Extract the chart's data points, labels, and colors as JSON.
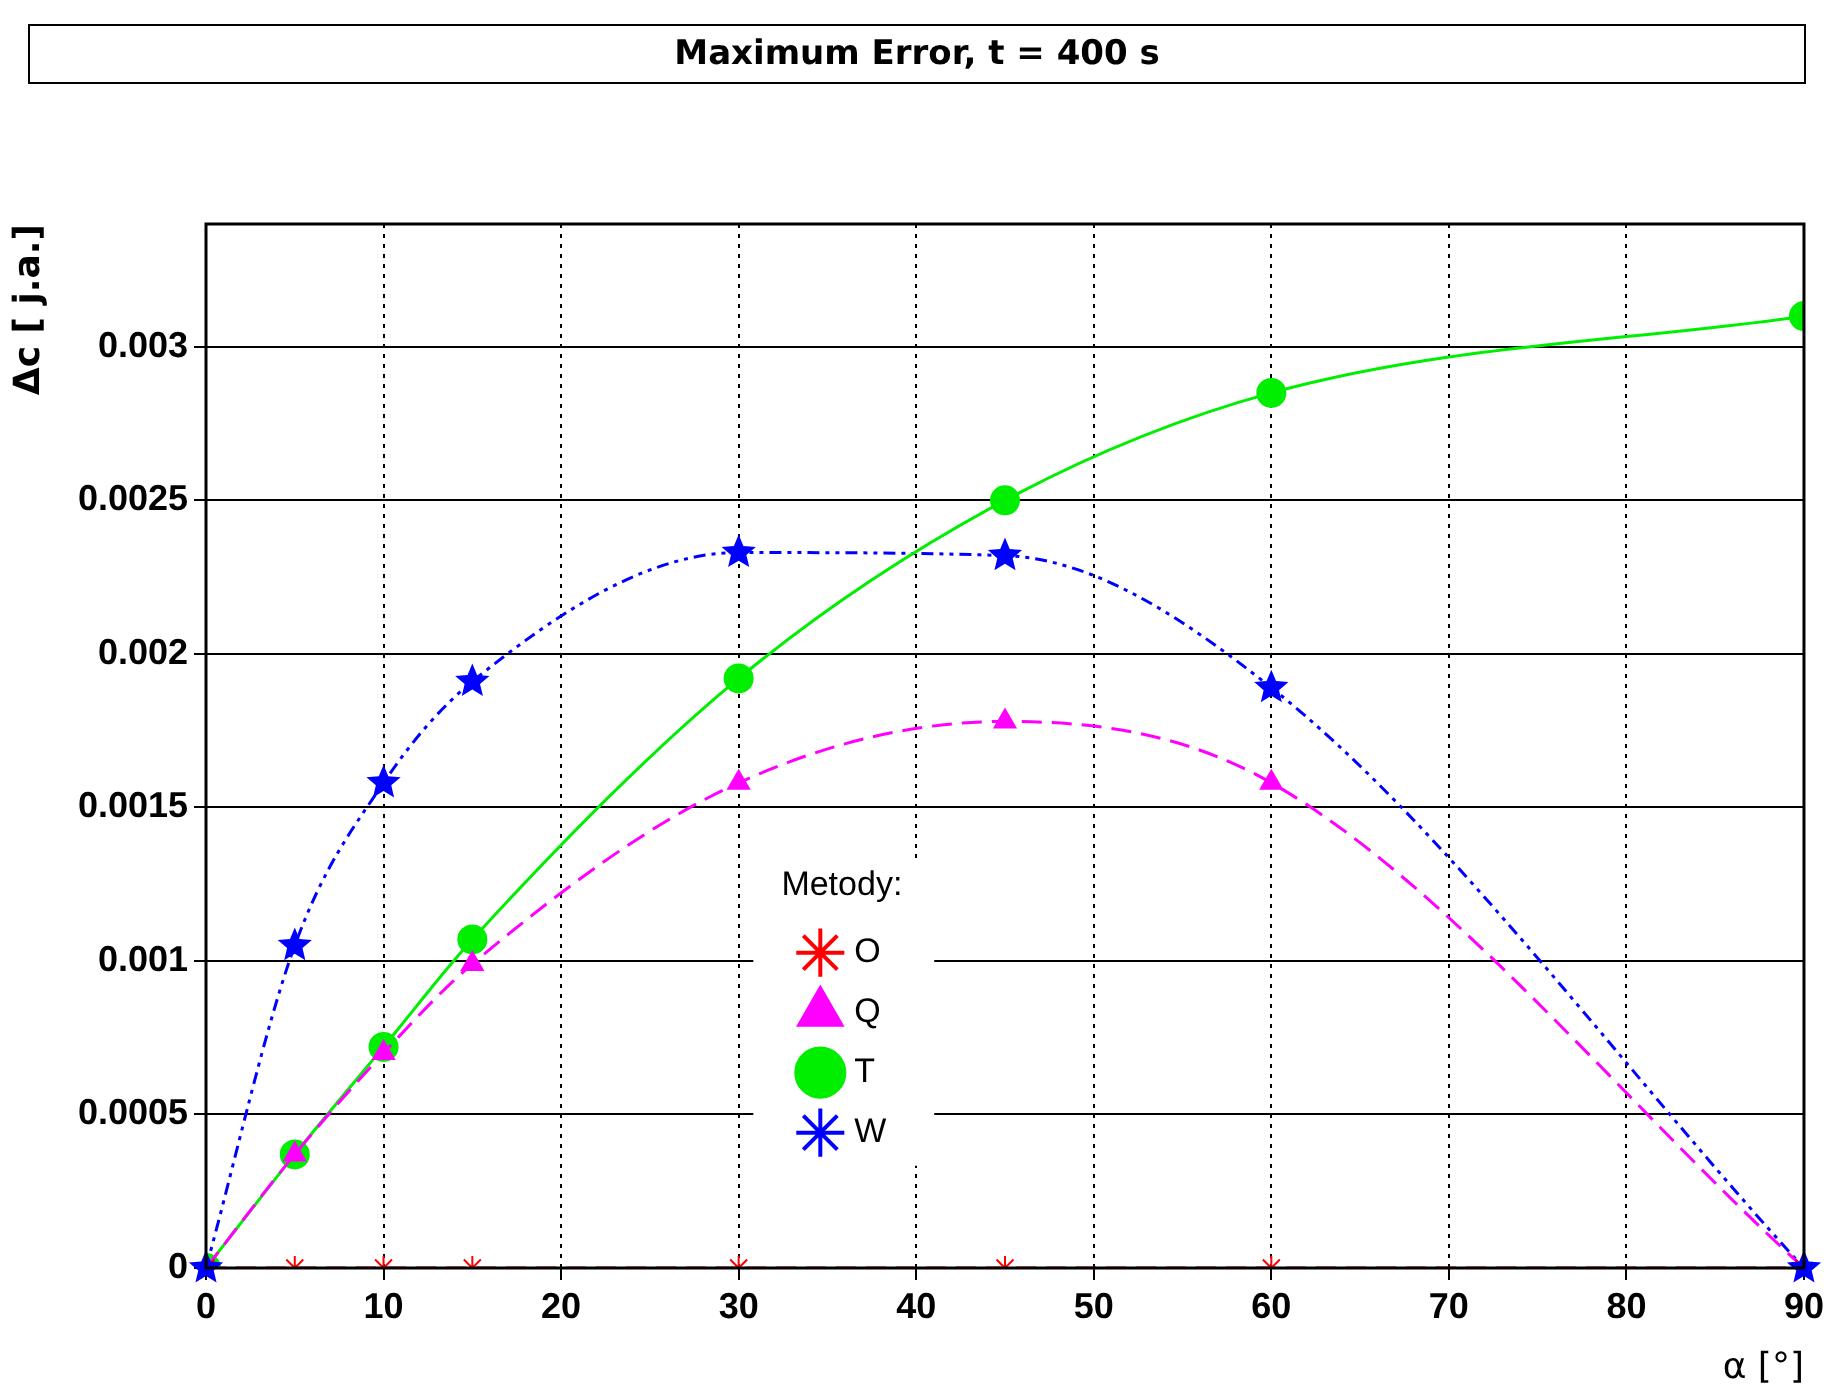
{
  "chart_data": {
    "type": "line",
    "title": "Maximum Error, t = 400 s",
    "xlabel": "α [°]",
    "ylabel": "Δc [ j.a.]",
    "legend_title": "Metody:",
    "x": [
      0,
      5,
      10,
      15,
      30,
      45,
      60,
      90
    ],
    "xlim": [
      0,
      90
    ],
    "xticks": [
      0,
      10,
      20,
      30,
      40,
      50,
      60,
      70,
      80,
      90
    ],
    "ylim": [
      0,
      0.0034
    ],
    "yticks": [
      0,
      0.0005,
      0.001,
      0.0015,
      0.002,
      0.0025,
      0.003
    ],
    "grid": true,
    "legend": "bottom",
    "series": [
      {
        "name": "O",
        "color": "#ff0000",
        "line_style": "dashed",
        "marker": "cross",
        "values": [
          0,
          0,
          0,
          0,
          0,
          0,
          0,
          0
        ]
      },
      {
        "name": "Q",
        "color": "#ff00ff",
        "line_style": "dashed",
        "marker": "triangle",
        "values": [
          0,
          0.00037,
          0.0007,
          0.00099,
          0.00158,
          0.00178,
          0.00158,
          0
        ]
      },
      {
        "name": "T",
        "color": "#00ee00",
        "line_style": "solid",
        "marker": "circle",
        "values": [
          0,
          0.00037,
          0.00072,
          0.00107,
          0.00192,
          0.0025,
          0.00285,
          0.0031
        ]
      },
      {
        "name": "W",
        "color": "#0000ff",
        "line_style": "dotted",
        "marker": "star",
        "values": [
          0,
          0.00105,
          0.00158,
          0.00191,
          0.00233,
          0.00232,
          0.00189,
          0
        ]
      }
    ]
  }
}
